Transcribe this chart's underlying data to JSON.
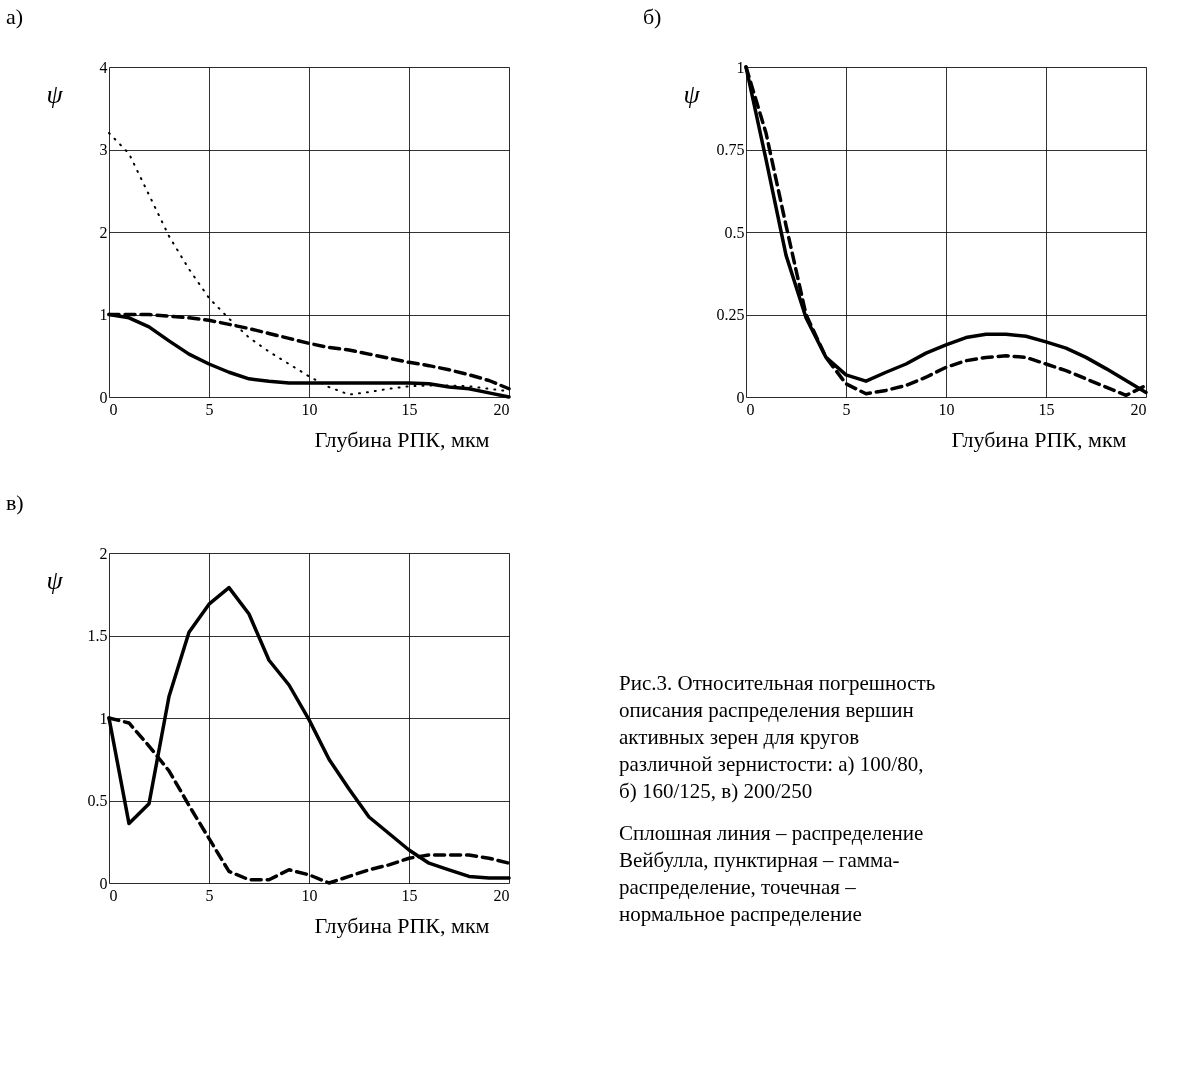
{
  "chart_data": [
    {
      "type": "line",
      "title": "а)",
      "xlabel": "Глубина РПК, мкм",
      "ylabel": "ψ",
      "xlim": [
        0,
        20
      ],
      "xticks": [
        0,
        5,
        10,
        15,
        20
      ],
      "ylim": [
        0,
        4
      ],
      "yticks": [
        0,
        1,
        2,
        3,
        4
      ],
      "grid": true,
      "marker": "none",
      "x": [
        0,
        1,
        2,
        3,
        4,
        5,
        6,
        7,
        8,
        9,
        10,
        11,
        12,
        13,
        14,
        15,
        16,
        17,
        18,
        19,
        20
      ],
      "series": [
        {
          "color": "#000000",
          "line_style": "solid",
          "values": [
            1,
            0.96,
            0.85,
            0.68,
            0.52,
            0.4,
            0.3,
            0.22,
            0.19,
            0.17,
            0.17,
            0.17,
            0.17,
            0.17,
            0.17,
            0.17,
            0.16,
            0.12,
            0.1,
            0.05,
            0
          ]
        },
        {
          "color": "#000000",
          "line_style": "dashed",
          "values": [
            1,
            1,
            1,
            0.98,
            0.96,
            0.93,
            0.88,
            0.83,
            0.77,
            0.71,
            0.65,
            0.6,
            0.57,
            0.52,
            0.47,
            0.42,
            0.38,
            0.33,
            0.27,
            0.2,
            0.1
          ]
        },
        {
          "color": "#000000",
          "line_style": "dotted",
          "values": [
            3.2,
            2.95,
            2.45,
            1.95,
            1.55,
            1.2,
            0.95,
            0.72,
            0.55,
            0.4,
            0.25,
            0.12,
            0.03,
            0.06,
            0.1,
            0.13,
            0.14,
            0.14,
            0.13,
            0.1,
            0.07
          ]
        }
      ]
    },
    {
      "type": "line",
      "title": "б)",
      "xlabel": "Глубина РПК, мкм",
      "ylabel": "ψ",
      "xlim": [
        0,
        20
      ],
      "xticks": [
        0,
        5,
        10,
        15,
        20
      ],
      "ylim": [
        0,
        1
      ],
      "yticks": [
        0,
        0.25,
        0.5,
        0.75,
        1
      ],
      "grid": true,
      "marker": "none",
      "x": [
        0,
        1,
        2,
        3,
        4,
        5,
        6,
        7,
        8,
        9,
        10,
        11,
        12,
        13,
        14,
        15,
        16,
        17,
        18,
        19,
        20
      ],
      "series": [
        {
          "color": "#000000",
          "line_style": "solid",
          "values": [
            1,
            0.72,
            0.43,
            0.24,
            0.12,
            0.067,
            0.048,
            0.075,
            0.1,
            0.133,
            0.158,
            0.18,
            0.19,
            0.19,
            0.184,
            0.167,
            0.148,
            0.12,
            0.086,
            0.05,
            0.014
          ]
        },
        {
          "color": "#000000",
          "line_style": "dashed",
          "values": [
            1,
            0.8,
            0.52,
            0.25,
            0.12,
            0.04,
            0.01,
            0.02,
            0.035,
            0.06,
            0.09,
            0.11,
            0.12,
            0.125,
            0.12,
            0.1,
            0.08,
            0.055,
            0.03,
            0.005,
            0.035
          ]
        }
      ]
    },
    {
      "type": "line",
      "title": "в)",
      "xlabel": "Глубина РПК, мкм",
      "ylabel": "ψ",
      "xlim": [
        0,
        20
      ],
      "xticks": [
        0,
        5,
        10,
        15,
        20
      ],
      "ylim": [
        0,
        2
      ],
      "yticks": [
        0,
        0.5,
        1,
        1.5,
        2
      ],
      "grid": true,
      "marker": "none",
      "x": [
        0,
        1,
        2,
        3,
        4,
        5,
        6,
        7,
        8,
        9,
        10,
        11,
        12,
        13,
        14,
        15,
        16,
        17,
        18,
        19,
        20
      ],
      "series": [
        {
          "color": "#000000",
          "line_style": "solid",
          "values": [
            1,
            0.36,
            0.48,
            1.13,
            1.52,
            1.69,
            1.79,
            1.63,
            1.35,
            1.2,
            0.99,
            0.75,
            0.57,
            0.4,
            0.3,
            0.2,
            0.12,
            0.08,
            0.04,
            0.03,
            0.03
          ]
        },
        {
          "color": "#000000",
          "line_style": "dashed",
          "values": [
            1,
            0.97,
            0.83,
            0.68,
            0.47,
            0.27,
            0.07,
            0.02,
            0.02,
            0.08,
            0.05,
            0,
            0.04,
            0.08,
            0.11,
            0.15,
            0.17,
            0.17,
            0.17,
            0.15,
            0.12
          ]
        }
      ],
      "annotations": [
        "Рис.3. Относительная погрешность описания распределения вершин активных зерен для кругов различной зернистости: а) 100/80, б) 160/125, в) 200/250",
        "Сплошная линия – распределение Вейбулла, пунктирная – гамма-распределение, точечная – нормальное распределение"
      ]
    }
  ]
}
